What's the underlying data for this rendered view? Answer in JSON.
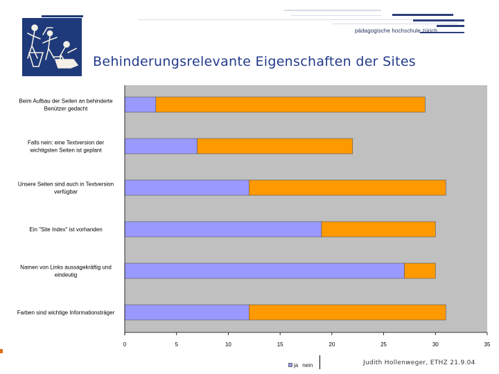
{
  "header": {
    "institution": "pädagogische hochschule zürich",
    "title": "Behinderungsrelevante Eigenschaften der Sites"
  },
  "colors": {
    "ja": "#9999ff",
    "nein": "#ff9900",
    "plot_bg": "#c0c0c0",
    "title": "#223a8a"
  },
  "chart_data": {
    "type": "bar",
    "orientation": "horizontal",
    "stacked": true,
    "categories": [
      [
        "Beim Aufbau der Seiten an behinderte",
        "Benützer gedacht"
      ],
      [
        "Falls nein: eine Textversion der",
        "wichtigsten Seiten ist geplant"
      ],
      [
        "Unsere Seiten sind auch in Textversion",
        "verfügbar"
      ],
      [
        "Ein \"Site Index\" ist vorhanden"
      ],
      [
        "Namen von Links aussagekräftig und",
        "eindeutig"
      ],
      [
        "Farben sind wichtige Informationsträger"
      ]
    ],
    "series": [
      {
        "name": "ja",
        "values": [
          3,
          7,
          12,
          19,
          27,
          12
        ]
      },
      {
        "name": "nein",
        "values": [
          26,
          15,
          19,
          11,
          3,
          19
        ]
      }
    ],
    "xlim": [
      0,
      35
    ],
    "xticks": [
      "0",
      "5",
      "10",
      "15",
      "20",
      "25",
      "30",
      "35"
    ],
    "legend": [
      "ja",
      "nein"
    ]
  },
  "footer": {
    "text": "Judith Hollenweger, ETHZ  21.9.04"
  }
}
